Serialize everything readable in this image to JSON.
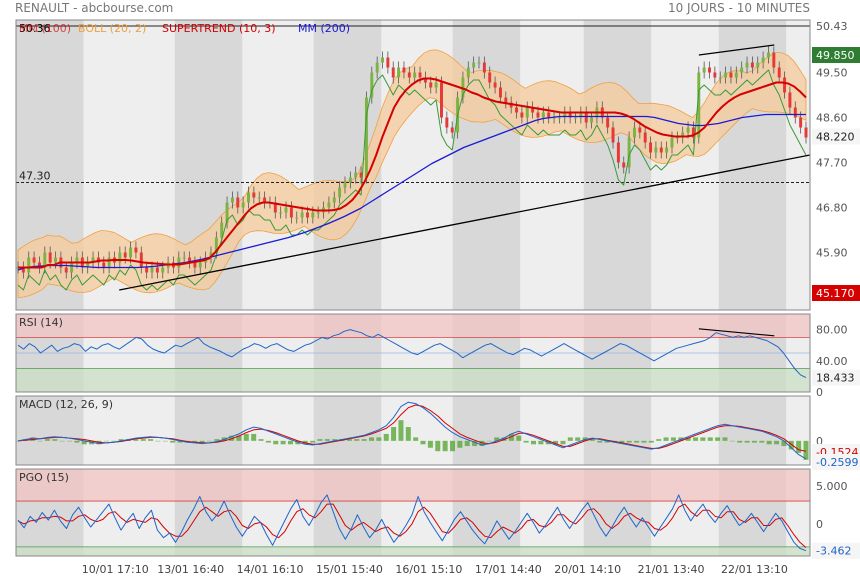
{
  "header": {
    "title": "RENAULT - abcbourse.com",
    "period": "10 JOURS - 10 MINUTES"
  },
  "colors": {
    "background": "#ffffff",
    "plot_bg": "#eeeeee",
    "band_dark": "#d8d8d8",
    "frame": "#888888",
    "candle_up": "#7cb342",
    "candle_down": "#e53935",
    "supertrend": "#d50000",
    "supertrend_dash": "#e53935",
    "boll_fill": "#f5cda0",
    "boll_line": "#f0a040",
    "mm": "#1a1ad6",
    "trendline": "#000000",
    "last_price_badge": "#f5f5f5",
    "upper_badge": "#2e7d32",
    "lower_badge": "#d50000",
    "rsi_line": "#1e66c8",
    "macd_line": "#1e66c8",
    "macd_signal": "#d50000",
    "macd_hist": "#5aa83a",
    "pgo_line": "#1e66c8",
    "pgo_signal": "#d50000",
    "zone_top": "#f2c4c4",
    "zone_bottom": "#c9dfc4"
  },
  "chart_data": [
    {
      "type": "candlestick",
      "legend": [
        {
          "label": "50.36",
          "color": "#000000"
        },
        {
          "label": "MM (100)",
          "color": "#d50000"
        },
        {
          "label": "BOLL (20, 2)",
          "color": "#f0a040"
        },
        {
          "label": "SUPERTREND (10, 3)",
          "color": "#d50000"
        },
        {
          "label": "MM (200)",
          "color": "#1a1ad6"
        }
      ],
      "y_ticks": [
        50.43,
        49.5,
        48.6,
        47.7,
        46.8,
        45.9,
        45.0
      ],
      "y_tick_labels": [
        "50.43",
        "49.50",
        "48.60",
        "47.70",
        "46.80",
        "45.90",
        ""
      ],
      "ylim": [
        44.75,
        50.55
      ],
      "x_ticks": [
        "10/01 17:10",
        "13/01 16:40",
        "14/01 16:10",
        "15/01 15:40",
        "16/01 15:10",
        "17/01 14:40",
        "20/01 14:10",
        "21/01 13:40",
        "22/01 13:10"
      ],
      "reference_lines": [
        {
          "label": "47.30",
          "value": 47.3,
          "style": "dashed"
        },
        {
          "label": "50.43",
          "value": 50.43,
          "style": "solid"
        }
      ],
      "price_labels": [
        {
          "label": "49.850",
          "value": 49.85,
          "kind": "upper"
        },
        {
          "label": "48.220",
          "value": 48.22,
          "kind": "last"
        },
        {
          "label": "45.170",
          "value": 45.17,
          "kind": "lower"
        }
      ],
      "close": [
        45.6,
        45.5,
        45.8,
        45.7,
        45.6,
        45.9,
        45.7,
        45.8,
        45.6,
        45.5,
        45.7,
        45.8,
        45.6,
        45.7,
        45.8,
        45.7,
        45.6,
        45.8,
        45.7,
        45.9,
        45.8,
        46.0,
        45.9,
        45.6,
        45.5,
        45.6,
        45.5,
        45.6,
        45.7,
        45.6,
        45.8,
        45.8,
        45.7,
        45.6,
        45.7,
        45.8,
        45.9,
        46.2,
        46.5,
        46.9,
        47.0,
        46.8,
        46.9,
        47.1,
        47.0,
        47.0,
        46.9,
        46.9,
        46.7,
        46.7,
        46.8,
        46.6,
        46.6,
        46.7,
        46.6,
        46.7,
        46.7,
        46.8,
        46.9,
        47.0,
        47.2,
        47.3,
        47.4,
        47.5,
        47.4,
        49.0,
        49.5,
        49.7,
        49.8,
        49.6,
        49.4,
        49.6,
        49.5,
        49.4,
        49.5,
        49.4,
        49.3,
        49.2,
        49.3,
        48.6,
        48.4,
        48.3,
        49.0,
        49.4,
        49.6,
        49.7,
        49.7,
        49.5,
        49.3,
        49.2,
        49.0,
        48.9,
        48.8,
        48.7,
        48.6,
        48.8,
        48.7,
        48.6,
        48.7,
        48.6,
        48.6,
        48.6,
        48.7,
        48.6,
        48.6,
        48.7,
        48.5,
        48.6,
        48.8,
        48.6,
        48.4,
        48.1,
        47.7,
        47.6,
        48.2,
        48.4,
        48.3,
        48.1,
        47.9,
        48.0,
        47.9,
        48.0,
        48.2,
        48.2,
        48.3,
        48.4,
        48.2,
        49.5,
        49.6,
        49.5,
        49.4,
        49.4,
        49.5,
        49.4,
        49.5,
        49.6,
        49.7,
        49.6,
        49.7,
        49.8,
        49.9,
        49.6,
        49.4,
        49.1,
        48.8,
        48.6,
        48.4,
        48.2
      ],
      "mm100": [
        45.6,
        45.6,
        45.6,
        45.6,
        45.6,
        45.65,
        45.65,
        45.7,
        45.7,
        45.7,
        45.7,
        45.7,
        45.7,
        45.72,
        45.74,
        45.74,
        45.75,
        45.75,
        45.75,
        45.74,
        45.72,
        45.7,
        45.69,
        45.68,
        45.67,
        45.66,
        45.66,
        45.66,
        45.68,
        45.7,
        45.72,
        45.74,
        45.78,
        45.9,
        46.05,
        46.2,
        46.35,
        46.5,
        46.65,
        46.78,
        46.86,
        46.9,
        46.9,
        46.88,
        46.86,
        46.84,
        46.82,
        46.8,
        46.78,
        46.76,
        46.74,
        46.74,
        46.74,
        46.75,
        46.78,
        46.85,
        46.95,
        47.1,
        47.3,
        47.55,
        47.85,
        48.2,
        48.5,
        48.8,
        49.0,
        49.15,
        49.26,
        49.34,
        49.38,
        49.38,
        49.36,
        49.32,
        49.28,
        49.24,
        49.2,
        49.16,
        49.1,
        49.06,
        49.0,
        48.96,
        48.92,
        48.9,
        48.88,
        48.86,
        48.84,
        48.82,
        48.8,
        48.78,
        48.76,
        48.74,
        48.72,
        48.7,
        48.7,
        48.7,
        48.7,
        48.7,
        48.7,
        48.7,
        48.7,
        48.7,
        48.7,
        48.68,
        48.64,
        48.58,
        48.5,
        48.42,
        48.36,
        48.3,
        48.26,
        48.24,
        48.22,
        48.22,
        48.22,
        48.24,
        48.3,
        48.4,
        48.55,
        48.7,
        48.82,
        48.92,
        49.0,
        49.06,
        49.1,
        49.14,
        49.18,
        49.22,
        49.26,
        49.3,
        49.3,
        49.28,
        49.22,
        49.12,
        49.0
      ],
      "mm200": [
        45.55,
        45.6,
        45.62,
        45.63,
        45.64,
        45.64,
        45.64,
        45.63,
        45.62,
        45.61,
        45.6,
        45.6,
        45.6,
        45.6,
        45.6,
        45.6,
        45.61,
        45.62,
        45.64,
        45.66,
        45.68,
        45.7,
        45.73,
        45.76,
        45.8,
        45.84,
        45.88,
        45.92,
        45.96,
        46.0,
        46.04,
        46.08,
        46.12,
        46.16,
        46.2,
        46.25,
        46.3,
        46.36,
        46.42,
        46.48,
        46.55,
        46.62,
        46.7,
        46.78,
        46.88,
        46.98,
        47.08,
        47.18,
        47.28,
        47.38,
        47.48,
        47.58,
        47.68,
        47.76,
        47.84,
        47.92,
        48.0,
        48.06,
        48.12,
        48.18,
        48.24,
        48.3,
        48.36,
        48.42,
        48.48,
        48.54,
        48.58,
        48.6,
        48.62,
        48.62,
        48.62,
        48.62,
        48.62,
        48.62,
        48.62,
        48.62,
        48.62,
        48.62,
        48.62,
        48.62,
        48.6,
        48.56,
        48.52,
        48.48,
        48.46,
        48.44,
        48.44,
        48.46,
        48.48,
        48.52,
        48.56,
        48.6,
        48.62,
        48.64,
        48.66,
        48.66,
        48.66,
        48.66,
        48.66,
        48.66
      ],
      "trendline": {
        "from": [
          0.13,
          45.15
        ],
        "to": [
          1.0,
          47.85
        ]
      },
      "top_trendline": {
        "from": [
          0.86,
          49.85
        ],
        "to": [
          0.955,
          50.05
        ]
      }
    },
    {
      "type": "line",
      "title": "RSI (14)",
      "y_ticks": [
        80,
        40,
        0
      ],
      "y_tick_labels": [
        "80.00",
        "40.00",
        "0"
      ],
      "ylim": [
        0,
        100
      ],
      "zones": [
        {
          "from": 70,
          "to": 100,
          "kind": "top"
        },
        {
          "from": 0,
          "to": 30,
          "kind": "bottom"
        }
      ],
      "mid_line": 50,
      "last_value_label": "18.433",
      "values": [
        60,
        55,
        62,
        58,
        50,
        55,
        60,
        52,
        56,
        58,
        62,
        60,
        52,
        58,
        55,
        60,
        62,
        58,
        55,
        60,
        65,
        70,
        68,
        60,
        55,
        52,
        50,
        55,
        60,
        58,
        62,
        66,
        70,
        62,
        58,
        55,
        52,
        48,
        45,
        50,
        55,
        58,
        62,
        60,
        56,
        60,
        62,
        58,
        54,
        52,
        56,
        60,
        62,
        66,
        70,
        68,
        72,
        74,
        78,
        80,
        78,
        76,
        72,
        70,
        74,
        70,
        66,
        62,
        58,
        54,
        50,
        48,
        52,
        56,
        60,
        62,
        58,
        54,
        50,
        44,
        48,
        52,
        56,
        60,
        62,
        58,
        54,
        50,
        48,
        52,
        56,
        54,
        50,
        46,
        50,
        54,
        58,
        62,
        58,
        54,
        50,
        46,
        42,
        46,
        50,
        54,
        58,
        62,
        60,
        56,
        52,
        48,
        44,
        40,
        44,
        48,
        52,
        56,
        58,
        60,
        62,
        64,
        66,
        70,
        76,
        74,
        72,
        70,
        72,
        70,
        72,
        70,
        68,
        66,
        62,
        58,
        50,
        40,
        30,
        22,
        18.4
      ],
      "trendline": {
        "from": [
          0.86,
          81
        ],
        "to": [
          0.955,
          72
        ]
      }
    },
    {
      "type": "line",
      "title": "MACD (12, 26, 9)",
      "y_ticks": [
        0
      ],
      "y_tick_labels": [
        "0"
      ],
      "ylim": [
        -0.35,
        0.65
      ],
      "last_value_labels": [
        "-0.1524",
        "-0.2599"
      ],
      "macd": [
        0.0,
        0.02,
        0.04,
        0.03,
        0.05,
        0.06,
        0.05,
        0.04,
        0.02,
        0.0,
        -0.02,
        -0.04,
        -0.03,
        -0.02,
        0.0,
        0.02,
        0.04,
        0.05,
        0.06,
        0.05,
        0.04,
        0.02,
        0.0,
        -0.02,
        -0.03,
        -0.04,
        -0.03,
        -0.01,
        0.02,
        0.06,
        0.1,
        0.16,
        0.2,
        0.18,
        0.14,
        0.1,
        0.06,
        0.02,
        -0.02,
        -0.05,
        -0.06,
        -0.04,
        -0.02,
        0.0,
        0.02,
        0.04,
        0.06,
        0.08,
        0.12,
        0.16,
        0.22,
        0.34,
        0.5,
        0.56,
        0.54,
        0.48,
        0.4,
        0.3,
        0.2,
        0.12,
        0.06,
        0.02,
        -0.02,
        -0.06,
        -0.04,
        0.0,
        0.04,
        0.1,
        0.14,
        0.1,
        0.06,
        0.02,
        -0.02,
        -0.06,
        -0.1,
        -0.06,
        -0.02,
        0.02,
        0.04,
        0.02,
        0.0,
        -0.02,
        -0.04,
        -0.06,
        -0.08,
        -0.1,
        -0.12,
        -0.1,
        -0.06,
        -0.02,
        0.02,
        0.06,
        0.1,
        0.14,
        0.18,
        0.22,
        0.24,
        0.22,
        0.2,
        0.18,
        0.16,
        0.14,
        0.1,
        0.06,
        0.0,
        -0.1,
        -0.2,
        -0.26
      ],
      "signal": [
        0.0,
        0.01,
        0.02,
        0.03,
        0.04,
        0.05,
        0.05,
        0.04,
        0.03,
        0.02,
        0.0,
        -0.02,
        -0.03,
        -0.02,
        -0.01,
        0.01,
        0.03,
        0.04,
        0.05,
        0.05,
        0.04,
        0.03,
        0.01,
        -0.01,
        -0.02,
        -0.03,
        -0.03,
        -0.02,
        0.0,
        0.03,
        0.07,
        0.12,
        0.16,
        0.17,
        0.15,
        0.12,
        0.08,
        0.04,
        0.0,
        -0.03,
        -0.05,
        -0.05,
        -0.03,
        -0.01,
        0.01,
        0.03,
        0.05,
        0.07,
        0.1,
        0.14,
        0.18,
        0.26,
        0.38,
        0.48,
        0.52,
        0.5,
        0.44,
        0.36,
        0.26,
        0.18,
        0.1,
        0.05,
        0.01,
        -0.03,
        -0.04,
        -0.02,
        0.02,
        0.06,
        0.11,
        0.11,
        0.08,
        0.04,
        0.0,
        -0.04,
        -0.08,
        -0.08,
        -0.04,
        0.0,
        0.03,
        0.03,
        0.01,
        -0.01,
        -0.03,
        -0.05,
        -0.07,
        -0.09,
        -0.11,
        -0.11,
        -0.08,
        -0.04,
        0.0,
        0.04,
        0.08,
        0.12,
        0.16,
        0.2,
        0.22,
        0.22,
        0.21,
        0.19,
        0.17,
        0.15,
        0.12,
        0.08,
        0.03,
        -0.05,
        -0.13,
        -0.15
      ]
    },
    {
      "type": "line",
      "title": "PGO (15)",
      "y_ticks": [
        5,
        0
      ],
      "y_tick_labels": [
        "5.000",
        "0"
      ],
      "ylim": [
        -4.2,
        7.2
      ],
      "zones": [
        {
          "from": 3,
          "to": 7.2,
          "kind": "top"
        },
        {
          "from": -4.2,
          "to": -3,
          "kind": "bottom"
        }
      ],
      "last_value_label": "-3.462",
      "pgo": [
        0.5,
        -0.5,
        1,
        0.2,
        1.5,
        0.5,
        1.8,
        0.4,
        -0.6,
        1.2,
        2.2,
        0.8,
        -0.4,
        0.6,
        1.6,
        2.6,
        0.8,
        -0.8,
        0.4,
        1.4,
        -0.6,
        0.8,
        1.8,
        -0.8,
        -1.8,
        -1.2,
        -2.4,
        -1,
        0.6,
        2,
        3.6,
        1.6,
        0.4,
        1.4,
        3,
        1.2,
        -0.4,
        -1.6,
        -0.4,
        1,
        0.2,
        -1.4,
        -2.8,
        -1.2,
        0.4,
        2,
        3.2,
        1,
        -0.2,
        1.2,
        2.8,
        3.8,
        1.6,
        -0.6,
        -2,
        -0.6,
        1.2,
        -0.4,
        -1.8,
        -0.8,
        0.6,
        -1,
        -2.4,
        -1.4,
        -0.2,
        1.2,
        3.6,
        1.6,
        0.2,
        -1,
        -2.2,
        -0.8,
        0.6,
        1.6,
        0.4,
        -0.8,
        -1.8,
        -2.6,
        -1.2,
        0.4,
        -0.8,
        -2,
        -1,
        0.2,
        1.4,
        0.2,
        -1.2,
        -0.2,
        1,
        2.2,
        0.6,
        -0.6,
        0.6,
        1.8,
        2.8,
        1.2,
        -0.4,
        -1.6,
        -0.4,
        1,
        2.2,
        0.8,
        -0.4,
        0.8,
        -0.4,
        -1.6,
        -0.4,
        0.8,
        2,
        3.8,
        1.8,
        0.4,
        1.6,
        2.6,
        1.2,
        0.2,
        1.4,
        2.4,
        1,
        -0.2,
        0.4,
        1.4,
        0.2,
        -1,
        0.2,
        1.4,
        0.4,
        -1,
        -2.4,
        -3.2,
        -3.5
      ],
      "signal": [
        0.4,
        0.0,
        0.4,
        0.5,
        0.8,
        0.8,
        1.0,
        0.9,
        0.4,
        0.4,
        1.0,
        1.2,
        0.6,
        0.3,
        0.6,
        1.4,
        1.6,
        0.8,
        0.2,
        0.6,
        0.4,
        0.2,
        0.8,
        0.6,
        -0.4,
        -1.2,
        -1.6,
        -1.6,
        -0.8,
        0.4,
        1.6,
        2.2,
        1.6,
        1.0,
        1.6,
        1.8,
        1.0,
        -0.2,
        -0.6,
        0.0,
        0.2,
        -0.4,
        -1.4,
        -1.8,
        -1.0,
        0.4,
        1.6,
        2.0,
        1.2,
        0.8,
        1.6,
        2.6,
        2.6,
        1.2,
        -0.2,
        -0.8,
        -0.2,
        0.2,
        -0.4,
        -1.0,
        -0.6,
        -0.4,
        -1.2,
        -1.6,
        -1.0,
        0.0,
        1.6,
        2.2,
        1.4,
        0.2,
        -1.0,
        -1.2,
        -0.4,
        0.6,
        0.8,
        0.2,
        -0.8,
        -1.6,
        -1.8,
        -1.0,
        -0.4,
        -0.8,
        -1.2,
        -0.6,
        0.4,
        0.6,
        -0.2,
        -0.4,
        0.2,
        1.2,
        1.2,
        0.4,
        0.0,
        0.8,
        1.8,
        2.0,
        1.2,
        0.0,
        -0.6,
        0.0,
        1.0,
        1.4,
        0.8,
        0.4,
        0.2,
        -0.6,
        -0.8,
        -0.2,
        0.8,
        2.2,
        2.6,
        1.6,
        1.0,
        1.8,
        1.8,
        1.0,
        0.8,
        1.6,
        1.6,
        0.6,
        0.2,
        0.8,
        0.8,
        -0.2,
        -0.2,
        0.6,
        0.8,
        -0.2,
        -1.4,
        -2.4,
        -3.1
      ]
    }
  ]
}
